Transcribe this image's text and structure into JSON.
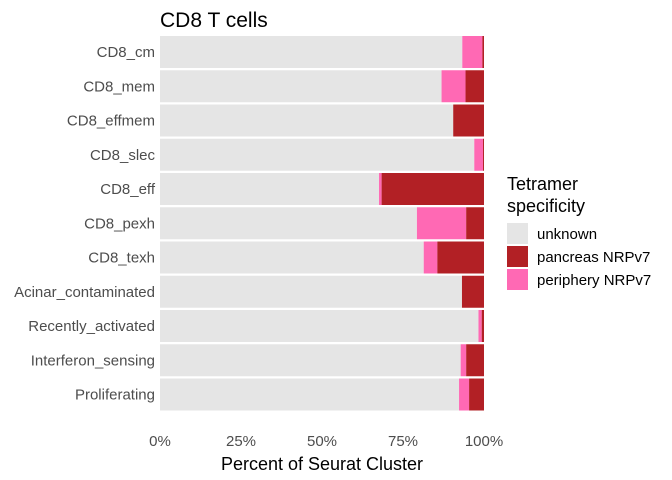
{
  "chart_data": {
    "type": "bar",
    "orientation": "horizontal",
    "stacked": true,
    "title": "CD8 T cells",
    "xlabel": "Percent of Seurat Cluster",
    "ylabel": "",
    "xlim": [
      0,
      1
    ],
    "x_ticks": [
      {
        "value": 0,
        "label": "0%"
      },
      {
        "value": 0.25,
        "label": "25%"
      },
      {
        "value": 0.5,
        "label": "50%"
      },
      {
        "value": 0.75,
        "label": "75%"
      },
      {
        "value": 1,
        "label": "100%"
      }
    ],
    "categories": [
      "CD8_cm",
      "CD8_mem",
      "CD8_effmem",
      "CD8_slec",
      "CD8_eff",
      "CD8_pexh",
      "CD8_texh",
      "Acinar_contaminated",
      "Recently_activated",
      "Interferon_sensing",
      "Proliferating"
    ],
    "series": [
      {
        "name": "unknown",
        "color": "#e5e5e5",
        "values": [
          0.933,
          0.869,
          0.905,
          0.97,
          0.676,
          0.793,
          0.814,
          0.932,
          0.983,
          0.928,
          0.923
        ]
      },
      {
        "name": "periphery NRPv7",
        "color": "#ff69b4",
        "values": [
          0.062,
          0.074,
          0.0,
          0.027,
          0.008,
          0.152,
          0.042,
          0.0,
          0.01,
          0.017,
          0.031
        ]
      },
      {
        "name": "pancreas NRPv7",
        "color": "#b22025",
        "values": [
          0.005,
          0.057,
          0.095,
          0.003,
          0.316,
          0.055,
          0.144,
          0.068,
          0.007,
          0.055,
          0.046
        ]
      }
    ],
    "legend": {
      "title_lines": [
        "Tetramer",
        "specificity"
      ],
      "position": "right",
      "entries": [
        {
          "label": "unknown",
          "color": "#e5e5e5"
        },
        {
          "label": "pancreas NRPv7",
          "color": "#b22025"
        },
        {
          "label": "periphery NRPv7",
          "color": "#ff69b4"
        }
      ]
    },
    "grid": false
  }
}
